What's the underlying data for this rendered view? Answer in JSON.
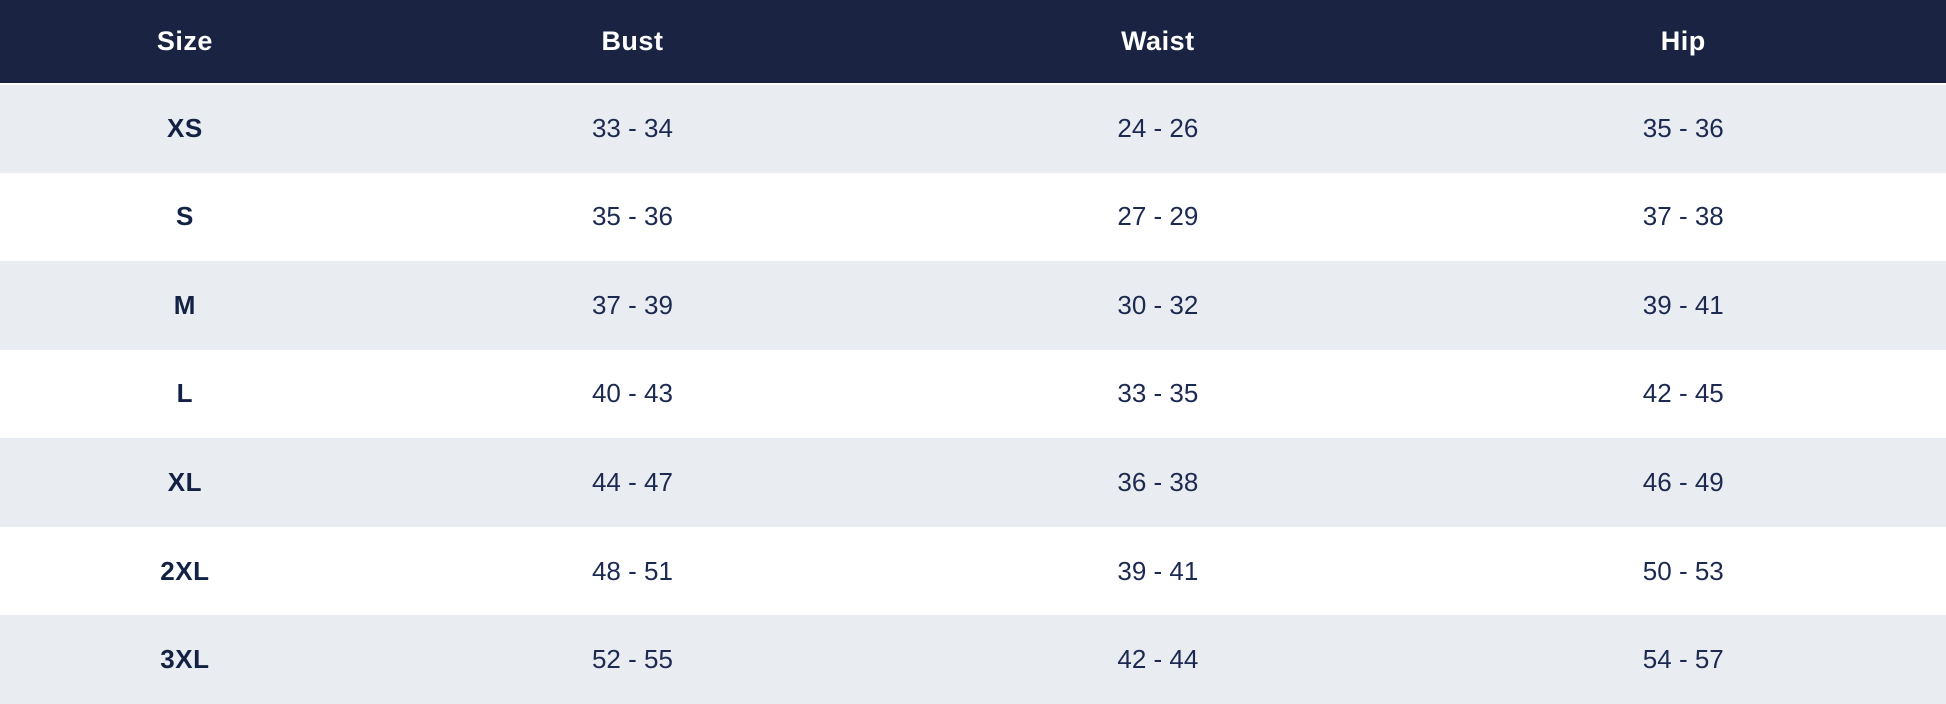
{
  "table": {
    "name": "size-chart",
    "columns": [
      "Size",
      "Bust",
      "Waist",
      "Hip"
    ],
    "rows": [
      {
        "size": "XS",
        "bust": "33 - 34",
        "waist": "24 - 26",
        "hip": "35 - 36"
      },
      {
        "size": "S",
        "bust": "35 - 36",
        "waist": "27 - 29",
        "hip": "37 - 38"
      },
      {
        "size": "M",
        "bust": "37 - 39",
        "waist": "30 - 32",
        "hip": "39 - 41"
      },
      {
        "size": "L",
        "bust": "40 - 43",
        "waist": "33 - 35",
        "hip": "42 - 45"
      },
      {
        "size": "XL",
        "bust": "44 - 47",
        "waist": "36 - 38",
        "hip": "46 - 49"
      },
      {
        "size": "2XL",
        "bust": "48 - 51",
        "waist": "39 - 41",
        "hip": "50 - 53"
      },
      {
        "size": "3XL",
        "bust": "52 - 55",
        "waist": "42 - 44",
        "hip": "54 - 57"
      }
    ],
    "colors": {
      "header_bg": "#1a2442",
      "header_text": "#ffffff",
      "row_alt_bg": "#e9edf1",
      "row_bg": "#ffffff",
      "cell_text": "#1c2951"
    }
  }
}
